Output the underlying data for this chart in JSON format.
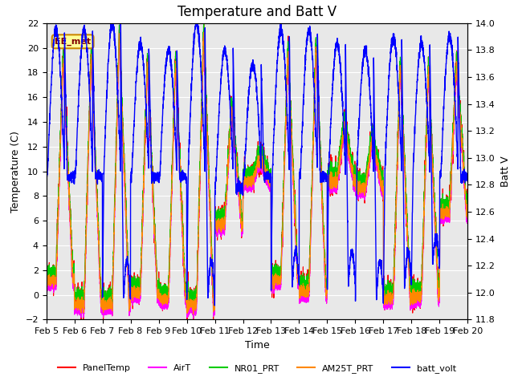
{
  "title": "Temperature and Batt V",
  "xlabel": "Time",
  "ylabel_left": "Temperature (C)",
  "ylabel_right": "Batt V",
  "xlim": [
    0,
    15
  ],
  "ylim_left": [
    -2,
    22
  ],
  "ylim_right": [
    11.8,
    14.0
  ],
  "xtick_labels": [
    "Feb 5",
    "Feb 6",
    "Feb 7",
    "Feb 8",
    "Feb 9",
    "Feb 10",
    "Feb 11",
    "Feb 12",
    "Feb 13",
    "Feb 14",
    "Feb 15",
    "Feb 16",
    "Feb 17",
    "Feb 18",
    "Feb 19",
    "Feb 20"
  ],
  "ytick_left": [
    -2,
    0,
    2,
    4,
    6,
    8,
    10,
    12,
    14,
    16,
    18,
    20,
    22
  ],
  "ytick_right": [
    11.8,
    12.0,
    12.2,
    12.4,
    12.6,
    12.8,
    13.0,
    13.2,
    13.4,
    13.6,
    13.8,
    14.0
  ],
  "series": {
    "PanelTemp": {
      "color": "#ff0000",
      "lw": 0.8
    },
    "AirT": {
      "color": "#ff00ff",
      "lw": 0.8
    },
    "NR01_PRT": {
      "color": "#00cc00",
      "lw": 0.8
    },
    "AM25T_PRT": {
      "color": "#ff8800",
      "lw": 0.8
    },
    "batt_volt": {
      "color": "#0000ff",
      "lw": 1.0
    }
  },
  "annotation_text": "EE_met",
  "plot_bg_color": "#e8e8e8",
  "title_fontsize": 12,
  "label_fontsize": 9,
  "tick_fontsize": 8,
  "day_peaks": [
    19.5,
    20.0,
    21.5,
    19.0,
    19.0,
    21.5,
    15.5,
    11.5,
    20.0,
    20.5,
    14.0,
    13.0,
    19.0,
    18.5,
    19.0
  ],
  "day_mins": [
    1.5,
    -0.5,
    -0.5,
    0.5,
    0.0,
    -0.5,
    6.0,
    9.5,
    1.5,
    0.5,
    9.5,
    9.0,
    0.0,
    0.2,
    7.0
  ],
  "batt_peaks": [
    13.95,
    13.95,
    14.0,
    13.85,
    13.8,
    14.0,
    13.8,
    13.7,
    13.95,
    13.95,
    13.85,
    13.8,
    13.9,
    13.85,
    13.9
  ],
  "batt_mins": [
    12.85,
    12.85,
    11.95,
    12.85,
    12.85,
    11.95,
    12.75,
    12.85,
    12.05,
    12.85,
    12.05,
    11.95,
    12.05,
    12.2,
    12.85
  ]
}
